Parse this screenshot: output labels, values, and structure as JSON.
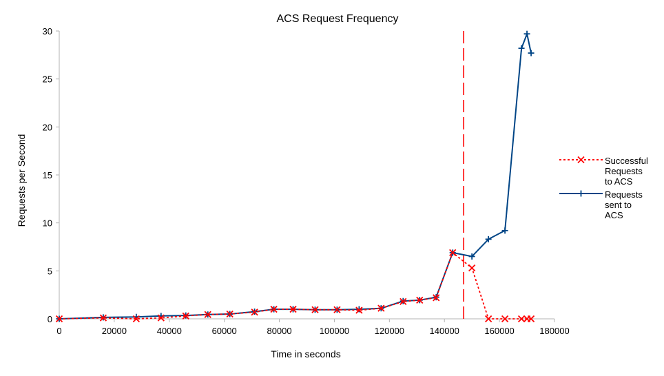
{
  "chart_data": {
    "type": "line",
    "title": "ACS Request Frequency",
    "xlabel": "Time in seconds",
    "ylabel": "Requests per Second",
    "xlim": [
      0,
      180000
    ],
    "ylim": [
      0,
      30
    ],
    "x_ticks": [
      0,
      20000,
      40000,
      60000,
      80000,
      100000,
      120000,
      140000,
      160000,
      180000
    ],
    "y_ticks": [
      0,
      5,
      10,
      15,
      20,
      25,
      30
    ],
    "grid": false,
    "legend_position": "right",
    "vertical_marker_x": 147000,
    "series": [
      {
        "name": "Successful Requests to ACS",
        "legend_lines": [
          "Successful",
          "Requests",
          "to ACS"
        ],
        "color": "#ff0000",
        "style": "dotted",
        "marker": "x",
        "points": [
          [
            0,
            0.0
          ],
          [
            16000,
            0.1
          ],
          [
            28000,
            0.0
          ],
          [
            37000,
            0.1
          ],
          [
            46000,
            0.3
          ],
          [
            54000,
            0.45
          ],
          [
            62000,
            0.5
          ],
          [
            71000,
            0.7
          ],
          [
            78000,
            1.0
          ],
          [
            85000,
            1.0
          ],
          [
            93000,
            0.95
          ],
          [
            101000,
            0.95
          ],
          [
            109000,
            0.9
          ],
          [
            117000,
            1.1
          ],
          [
            125000,
            1.8
          ],
          [
            131000,
            1.95
          ],
          [
            137000,
            2.2
          ],
          [
            143000,
            6.9
          ],
          [
            150000,
            5.3
          ],
          [
            156000,
            0.0
          ],
          [
            162000,
            0.0
          ],
          [
            168000,
            0.0
          ],
          [
            170000,
            0.0
          ],
          [
            171500,
            0.0
          ]
        ]
      },
      {
        "name": "Requests sent to ACS",
        "legend_lines": [
          "Requests",
          "sent to",
          "ACS"
        ],
        "color": "#004586",
        "style": "solid",
        "marker": "+",
        "points": [
          [
            0,
            0.0
          ],
          [
            16000,
            0.15
          ],
          [
            28000,
            0.2
          ],
          [
            37000,
            0.3
          ],
          [
            46000,
            0.35
          ],
          [
            54000,
            0.45
          ],
          [
            62000,
            0.5
          ],
          [
            71000,
            0.75
          ],
          [
            78000,
            1.0
          ],
          [
            85000,
            1.0
          ],
          [
            93000,
            0.95
          ],
          [
            101000,
            0.95
          ],
          [
            109000,
            1.0
          ],
          [
            117000,
            1.1
          ],
          [
            125000,
            1.85
          ],
          [
            131000,
            1.95
          ],
          [
            137000,
            2.25
          ],
          [
            143000,
            6.9
          ],
          [
            150000,
            6.5
          ],
          [
            156000,
            8.3
          ],
          [
            162000,
            9.2
          ],
          [
            168000,
            28.2
          ],
          [
            170000,
            29.7
          ],
          [
            171500,
            27.7
          ]
        ]
      }
    ]
  }
}
